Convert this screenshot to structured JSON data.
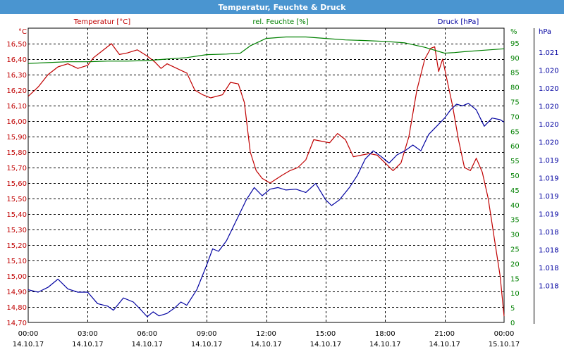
{
  "title": "Temperatur, Feuchte & Druck",
  "colors": {
    "temperature": "#c00000",
    "humidity": "#008000",
    "pressure": "#0000a0",
    "titlebar": "#4a95d0"
  },
  "chart_data": {
    "type": "line",
    "title": "Temperatur, Feuchte & Druck",
    "grid": true,
    "x_ticks": [
      {
        "time": "00:00",
        "date": "14.10.17"
      },
      {
        "time": "03:00",
        "date": "14.10.17"
      },
      {
        "time": "06:00",
        "date": "14.10.17"
      },
      {
        "time": "09:00",
        "date": "14.10.17"
      },
      {
        "time": "12:00",
        "date": "14.10.17"
      },
      {
        "time": "15:00",
        "date": "14.10.17"
      },
      {
        "time": "18:00",
        "date": "14.10.17"
      },
      {
        "time": "21:00",
        "date": "14.10.17"
      },
      {
        "time": "00:00",
        "date": "15.10.17"
      }
    ],
    "xlim_hours": [
      0,
      24
    ],
    "axes": {
      "temperature": {
        "unit": "°C",
        "legend": "Temperatur [°C]",
        "range": [
          14.7,
          16.6
        ],
        "ticks": [
          "16,50",
          "16,40",
          "16,30",
          "16,20",
          "16,10",
          "16,00",
          "15,90",
          "15,80",
          "15,70",
          "15,60",
          "15,50",
          "15,40",
          "15,30",
          "15,20",
          "15,10",
          "15,00",
          "14,90",
          "14,80",
          "14,70"
        ]
      },
      "humidity": {
        "unit": "%",
        "legend": "rel. Feuchte [%]",
        "range": [
          0,
          100
        ],
        "ticks": [
          "95",
          "90",
          "85",
          "80",
          "75",
          "70",
          "65",
          "60",
          "55",
          "50",
          "45",
          "40",
          "35",
          "30",
          "25",
          "20",
          "15",
          "10",
          "5",
          "0"
        ]
      },
      "pressure": {
        "unit": "hPa",
        "legend": "Druck [hPa]",
        "range": [
          1017.75,
          1021.35
        ],
        "ticks": [
          "1.021",
          "1.020",
          "1.020",
          "1.020",
          "1.020",
          "1.020",
          "1.019",
          "1.019",
          "1.019",
          "1.019",
          "1.018",
          "1.018",
          "1.018",
          "1.018"
        ]
      }
    },
    "series": [
      {
        "name": "Temperatur [°C]",
        "axis": "temperature",
        "points": [
          [
            0,
            16.16
          ],
          [
            0.5,
            16.22
          ],
          [
            1,
            16.3
          ],
          [
            1.5,
            16.35
          ],
          [
            2,
            16.37
          ],
          [
            2.5,
            16.34
          ],
          [
            3,
            16.36
          ],
          [
            3.3,
            16.41
          ],
          [
            3.7,
            16.45
          ],
          [
            4.2,
            16.5
          ],
          [
            4.6,
            16.43
          ],
          [
            5,
            16.44
          ],
          [
            5.5,
            16.46
          ],
          [
            6,
            16.42
          ],
          [
            6.4,
            16.38
          ],
          [
            6.7,
            16.34
          ],
          [
            7,
            16.37
          ],
          [
            7.5,
            16.34
          ],
          [
            8,
            16.31
          ],
          [
            8.4,
            16.2
          ],
          [
            8.8,
            16.17
          ],
          [
            9.2,
            16.15
          ],
          [
            9.8,
            16.17
          ],
          [
            10.2,
            16.25
          ],
          [
            10.6,
            16.24
          ],
          [
            10.9,
            16.12
          ],
          [
            11.2,
            15.8
          ],
          [
            11.5,
            15.68
          ],
          [
            11.8,
            15.63
          ],
          [
            12.2,
            15.6
          ],
          [
            12.8,
            15.65
          ],
          [
            13.2,
            15.68
          ],
          [
            13.6,
            15.7
          ],
          [
            14,
            15.75
          ],
          [
            14.4,
            15.88
          ],
          [
            14.8,
            15.87
          ],
          [
            15.2,
            15.86
          ],
          [
            15.6,
            15.92
          ],
          [
            16.0,
            15.88
          ],
          [
            16.4,
            15.77
          ],
          [
            16.8,
            15.78
          ],
          [
            17.2,
            15.79
          ],
          [
            17.6,
            15.78
          ],
          [
            18.0,
            15.73
          ],
          [
            18.4,
            15.68
          ],
          [
            18.8,
            15.73
          ],
          [
            19.2,
            15.9
          ],
          [
            19.6,
            16.2
          ],
          [
            20.0,
            16.4
          ],
          [
            20.3,
            16.47
          ],
          [
            20.5,
            16.48
          ],
          [
            20.7,
            16.32
          ],
          [
            20.9,
            16.4
          ],
          [
            21.1,
            16.28
          ],
          [
            21.4,
            16.1
          ],
          [
            21.7,
            15.88
          ],
          [
            22.0,
            15.7
          ],
          [
            22.3,
            15.68
          ],
          [
            22.6,
            15.76
          ],
          [
            22.9,
            15.67
          ],
          [
            23.2,
            15.5
          ],
          [
            23.5,
            15.25
          ],
          [
            23.8,
            15.0
          ],
          [
            24.0,
            14.74
          ]
        ]
      },
      {
        "name": "rel. Feuchte [%]",
        "axis": "humidity",
        "points": [
          [
            0,
            88
          ],
          [
            1,
            88.3
          ],
          [
            2,
            88.6
          ],
          [
            3,
            88.6
          ],
          [
            4,
            88.8
          ],
          [
            5,
            88.8
          ],
          [
            6,
            89
          ],
          [
            7,
            89.5
          ],
          [
            8,
            90
          ],
          [
            9,
            91
          ],
          [
            10,
            91.2
          ],
          [
            10.7,
            91.5
          ],
          [
            11.2,
            94
          ],
          [
            12,
            96.5
          ],
          [
            13,
            97
          ],
          [
            14,
            97
          ],
          [
            15,
            96.5
          ],
          [
            16,
            96
          ],
          [
            17,
            95.8
          ],
          [
            18,
            95.5
          ],
          [
            19,
            95
          ],
          [
            20,
            93.5
          ],
          [
            21,
            91.5
          ],
          [
            21.5,
            91.7
          ],
          [
            22,
            92
          ],
          [
            23,
            92.5
          ],
          [
            24,
            93
          ]
        ]
      },
      {
        "name": "Druck [hPa]",
        "axis": "pressure",
        "points": [
          [
            0,
            1018.15
          ],
          [
            0.5,
            1018.12
          ],
          [
            1,
            1018.18
          ],
          [
            1.5,
            1018.28
          ],
          [
            2,
            1018.16
          ],
          [
            2.5,
            1018.12
          ],
          [
            3,
            1018.12
          ],
          [
            3.5,
            1017.98
          ],
          [
            4,
            1017.95
          ],
          [
            4.3,
            1017.9
          ],
          [
            4.8,
            1018.05
          ],
          [
            5.3,
            1018.0
          ],
          [
            5.7,
            1017.9
          ],
          [
            6.0,
            1017.82
          ],
          [
            6.3,
            1017.88
          ],
          [
            6.6,
            1017.83
          ],
          [
            7,
            1017.86
          ],
          [
            7.4,
            1017.93
          ],
          [
            7.7,
            1018.0
          ],
          [
            8,
            1017.96
          ],
          [
            8.5,
            1018.15
          ],
          [
            9.0,
            1018.45
          ],
          [
            9.3,
            1018.65
          ],
          [
            9.6,
            1018.62
          ],
          [
            10.0,
            1018.75
          ],
          [
            10.4,
            1018.95
          ],
          [
            10.8,
            1019.15
          ],
          [
            11.0,
            1019.25
          ],
          [
            11.4,
            1019.4
          ],
          [
            11.8,
            1019.3
          ],
          [
            12.2,
            1019.38
          ],
          [
            12.6,
            1019.4
          ],
          [
            13.0,
            1019.37
          ],
          [
            13.5,
            1019.38
          ],
          [
            14.0,
            1019.34
          ],
          [
            14.5,
            1019.45
          ],
          [
            15.0,
            1019.25
          ],
          [
            15.3,
            1019.18
          ],
          [
            15.7,
            1019.25
          ],
          [
            16.2,
            1019.4
          ],
          [
            16.6,
            1019.55
          ],
          [
            17.0,
            1019.75
          ],
          [
            17.4,
            1019.85
          ],
          [
            17.8,
            1019.78
          ],
          [
            18.2,
            1019.7
          ],
          [
            18.6,
            1019.8
          ],
          [
            19.0,
            1019.85
          ],
          [
            19.4,
            1019.92
          ],
          [
            19.8,
            1019.85
          ],
          [
            20.2,
            1020.05
          ],
          [
            20.6,
            1020.15
          ],
          [
            21.0,
            1020.25
          ],
          [
            21.3,
            1020.35
          ],
          [
            21.6,
            1020.42
          ],
          [
            21.9,
            1020.4
          ],
          [
            22.2,
            1020.43
          ],
          [
            22.6,
            1020.35
          ],
          [
            23.0,
            1020.15
          ],
          [
            23.4,
            1020.25
          ],
          [
            23.8,
            1020.23
          ],
          [
            24.0,
            1020.2
          ]
        ]
      }
    ]
  }
}
